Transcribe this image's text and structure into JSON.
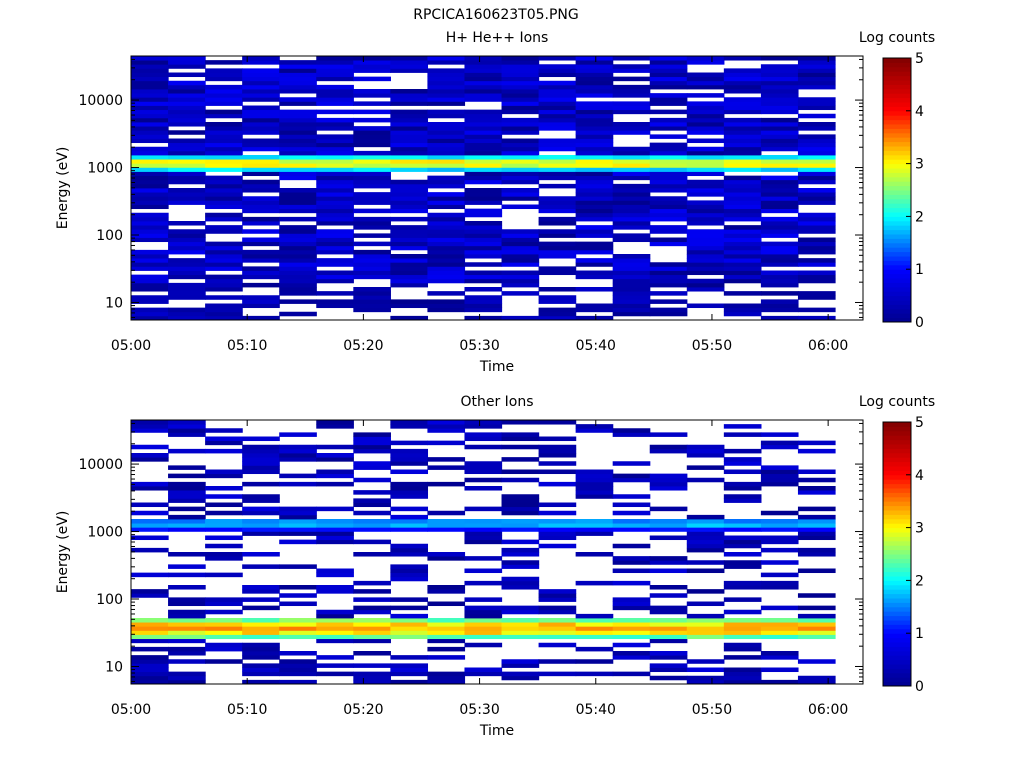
{
  "figure_title": "RPCICA160623T05.PNG",
  "colorscale": [
    "#00008f",
    "#0000ff",
    "#00ffff",
    "#ffff00",
    "#ff0000",
    "#800000"
  ],
  "chart_data": [
    {
      "type": "heatmap",
      "title": "H+ He++ Ions",
      "xlabel": "Time",
      "ylabel": "Energy (eV)",
      "x_ticks": [
        "05:00",
        "05:10",
        "05:20",
        "05:30",
        "05:40",
        "05:50",
        "06:00"
      ],
      "y_ticks": [
        "10",
        "100",
        "1000",
        "10000"
      ],
      "y_scale": "log",
      "ylim": [
        5.5,
        45000
      ],
      "xlim_minutes": [
        0,
        63
      ],
      "time_bins": 19,
      "energy_bins": 64,
      "grid": false,
      "colorbar": {
        "label": "Log counts",
        "ticks": [
          "0",
          "1",
          "2",
          "3",
          "4",
          "5"
        ],
        "range": [
          0,
          5
        ]
      },
      "bands": [
        {
          "energy_range_eV": [
            900,
            1500
          ],
          "peak_log_counts": 3.1,
          "note_value": "peak ~1200 eV"
        }
      ],
      "background_log_counts": [
        0,
        0.9
      ],
      "low_energy_edge_eV": 20
    },
    {
      "type": "heatmap",
      "title": "Other Ions",
      "xlabel": "Time",
      "ylabel": "Energy (eV)",
      "x_ticks": [
        "05:00",
        "05:10",
        "05:20",
        "05:30",
        "05:40",
        "05:50",
        "06:00"
      ],
      "y_ticks": [
        "10",
        "100",
        "1000",
        "10000"
      ],
      "y_scale": "log",
      "ylim": [
        5.5,
        45000
      ],
      "xlim_minutes": [
        0,
        63
      ],
      "time_bins": 19,
      "energy_bins": 64,
      "grid": false,
      "colorbar": {
        "label": "Log counts",
        "ticks": [
          "0",
          "1",
          "2",
          "3",
          "4",
          "5"
        ],
        "range": [
          0,
          5
        ]
      },
      "bands": [
        {
          "energy_range_eV": [
            1050,
            1600
          ],
          "peak_log_counts": 1.8
        },
        {
          "energy_range_eV": [
            25,
            55
          ],
          "peak_log_counts": 3.4
        }
      ],
      "background_log_counts": [
        0,
        0.7
      ],
      "low_energy_edge_eV": 9
    }
  ]
}
